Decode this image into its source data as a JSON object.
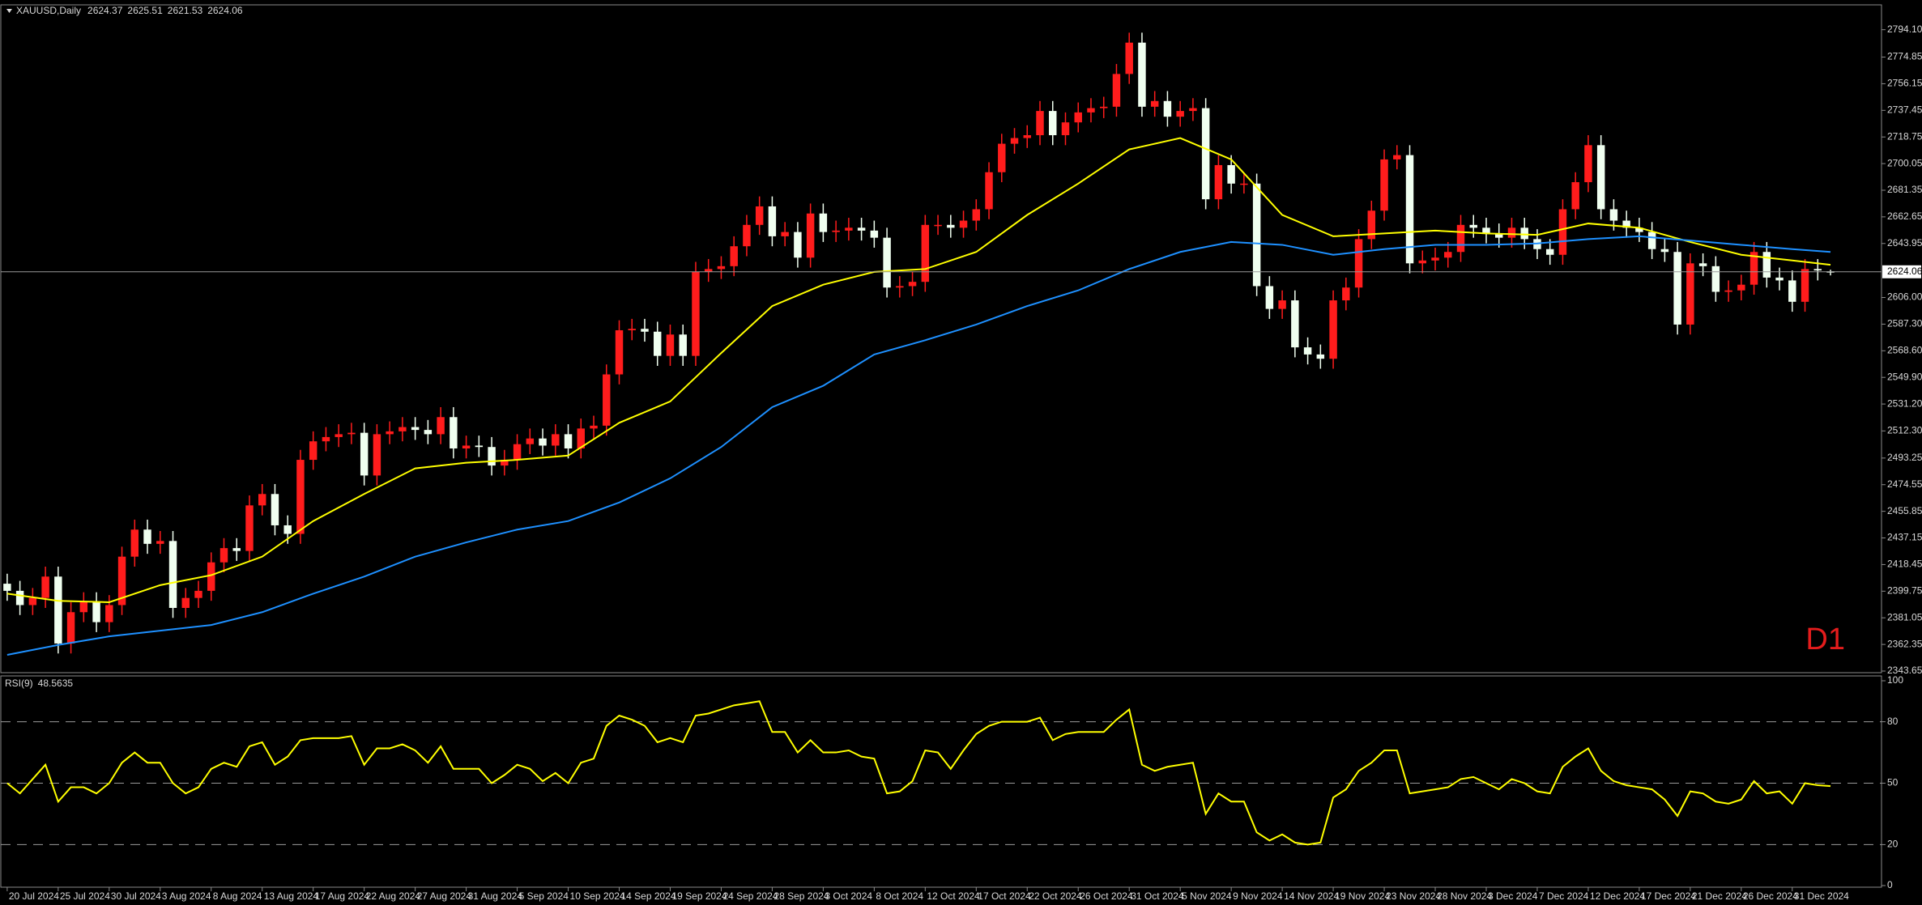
{
  "chart_data": [
    {
      "type": "candlestick",
      "title": "XAUUSD,Daily",
      "timeframe": "D1",
      "open": [
        2405,
        2400,
        2390,
        2395,
        2410,
        2363,
        2385,
        2392,
        2378,
        2390,
        2424,
        2443,
        2433,
        2435,
        2388,
        2395,
        2400,
        2420,
        2430,
        2428,
        2460,
        2468,
        2446,
        2440,
        2492,
        2505,
        2508,
        2510,
        2511,
        2481,
        2510,
        2512,
        2515,
        2513,
        2510,
        2522,
        2500,
        2502,
        2501,
        2488,
        2492,
        2503,
        2507,
        2502,
        2510,
        2500,
        2514,
        2516,
        2552,
        2583,
        2584,
        2582,
        2565,
        2580,
        2565,
        2624,
        2626,
        2628,
        2642,
        2657,
        2670,
        2649,
        2652,
        2634,
        2665,
        2652,
        2653,
        2655,
        2653,
        2648,
        2613,
        2614,
        2617,
        2657,
        2657,
        2655,
        2660,
        2668,
        2694,
        2714,
        2718,
        2720,
        2737,
        2720,
        2729,
        2736,
        2739,
        2740,
        2763,
        2785,
        2740,
        2744,
        2733,
        2737,
        2739,
        2675,
        2699,
        2686,
        2686,
        2614,
        2598,
        2604,
        2571,
        2566,
        2563,
        2604,
        2613,
        2647,
        2667,
        2703,
        2706,
        2630,
        2632,
        2634,
        2638,
        2657,
        2655,
        2651,
        2648,
        2655,
        2647,
        2640,
        2636,
        2668,
        2687,
        2713,
        2668,
        2660,
        2655,
        2652,
        2640,
        2638,
        2587,
        2630,
        2628,
        2610,
        2611,
        2615,
        2638,
        2620,
        2618,
        2603,
        2626,
        2624.37
      ],
      "high": [
        2412,
        2407,
        2402,
        2417,
        2417,
        2392,
        2399,
        2399,
        2397,
        2431,
        2450,
        2450,
        2442,
        2442,
        2402,
        2407,
        2427,
        2437,
        2437,
        2467,
        2475,
        2475,
        2453,
        2499,
        2512,
        2515,
        2517,
        2518,
        2518,
        2517,
        2519,
        2522,
        2522,
        2520,
        2529,
        2529,
        2509,
        2509,
        2508,
        2499,
        2510,
        2514,
        2514,
        2517,
        2517,
        2521,
        2523,
        2559,
        2590,
        2591,
        2591,
        2589,
        2587,
        2587,
        2631,
        2633,
        2635,
        2649,
        2664,
        2677,
        2677,
        2659,
        2659,
        2672,
        2672,
        2660,
        2662,
        2662,
        2660,
        2655,
        2621,
        2624,
        2664,
        2664,
        2664,
        2667,
        2675,
        2701,
        2721,
        2725,
        2727,
        2744,
        2744,
        2736,
        2743,
        2746,
        2747,
        2770,
        2792,
        2792,
        2751,
        2751,
        2744,
        2746,
        2746,
        2706,
        2706,
        2693,
        2693,
        2621,
        2611,
        2611,
        2578,
        2573,
        2611,
        2620,
        2654,
        2674,
        2710,
        2713,
        2713,
        2639,
        2641,
        2645,
        2664,
        2664,
        2662,
        2658,
        2662,
        2662,
        2654,
        2647,
        2675,
        2694,
        2720,
        2720,
        2675,
        2667,
        2662,
        2659,
        2647,
        2645,
        2637,
        2637,
        2635,
        2618,
        2622,
        2645,
        2645,
        2627,
        2625,
        2633,
        2633,
        2625.51
      ],
      "low": [
        2393,
        2383,
        2383,
        2388,
        2356,
        2356,
        2378,
        2371,
        2371,
        2383,
        2417,
        2426,
        2426,
        2381,
        2381,
        2388,
        2393,
        2413,
        2421,
        2421,
        2453,
        2439,
        2433,
        2433,
        2485,
        2498,
        2501,
        2503,
        2474,
        2474,
        2503,
        2505,
        2506,
        2503,
        2503,
        2493,
        2493,
        2494,
        2481,
        2481,
        2485,
        2496,
        2495,
        2495,
        2493,
        2493,
        2507,
        2509,
        2545,
        2576,
        2575,
        2558,
        2558,
        2558,
        2558,
        2617,
        2619,
        2621,
        2635,
        2650,
        2642,
        2642,
        2627,
        2627,
        2645,
        2645,
        2646,
        2646,
        2641,
        2606,
        2606,
        2607,
        2610,
        2650,
        2648,
        2648,
        2653,
        2661,
        2687,
        2707,
        2711,
        2713,
        2713,
        2713,
        2722,
        2729,
        2732,
        2733,
        2756,
        2733,
        2733,
        2726,
        2726,
        2730,
        2668,
        2668,
        2679,
        2679,
        2607,
        2591,
        2591,
        2564,
        2559,
        2556,
        2556,
        2597,
        2606,
        2640,
        2660,
        2696,
        2623,
        2623,
        2625,
        2627,
        2631,
        2648,
        2644,
        2641,
        2641,
        2640,
        2633,
        2629,
        2629,
        2661,
        2680,
        2661,
        2653,
        2648,
        2645,
        2633,
        2631,
        2580,
        2580,
        2621,
        2603,
        2603,
        2604,
        2608,
        2613,
        2611,
        2596,
        2596,
        2618,
        2621.53
      ],
      "close": [
        2400,
        2390,
        2395,
        2410,
        2363,
        2385,
        2392,
        2378,
        2390,
        2424,
        2443,
        2433,
        2435,
        2388,
        2395,
        2400,
        2420,
        2430,
        2428,
        2460,
        2468,
        2446,
        2440,
        2492,
        2505,
        2508,
        2510,
        2511,
        2481,
        2510,
        2512,
        2515,
        2513,
        2510,
        2522,
        2500,
        2502,
        2501,
        2488,
        2492,
        2503,
        2507,
        2502,
        2510,
        2500,
        2514,
        2516,
        2552,
        2583,
        2584,
        2582,
        2565,
        2580,
        2565,
        2624,
        2626,
        2628,
        2642,
        2657,
        2670,
        2649,
        2652,
        2634,
        2665,
        2652,
        2653,
        2655,
        2653,
        2648,
        2613,
        2614,
        2617,
        2657,
        2657,
        2655,
        2660,
        2668,
        2694,
        2714,
        2718,
        2720,
        2737,
        2720,
        2729,
        2736,
        2739,
        2740,
        2763,
        2785,
        2740,
        2744,
        2733,
        2737,
        2739,
        2675,
        2699,
        2686,
        2686,
        2614,
        2598,
        2604,
        2571,
        2566,
        2563,
        2604,
        2613,
        2647,
        2667,
        2703,
        2706,
        2630,
        2632,
        2634,
        2638,
        2657,
        2655,
        2651,
        2648,
        2655,
        2647,
        2640,
        2636,
        2668,
        2687,
        2713,
        2668,
        2660,
        2655,
        2652,
        2640,
        2638,
        2587,
        2630,
        2628,
        2610,
        2611,
        2615,
        2638,
        2620,
        2618,
        2603,
        2626,
        2625,
        2624.06
      ],
      "up_color": "#ff1c1c",
      "down_color": "#f0fff0",
      "overlays": [
        {
          "type": "line",
          "color": "#ffff00",
          "x": [
            0,
            4,
            8,
            12,
            16,
            20,
            24,
            28,
            32,
            36,
            40,
            44,
            48,
            52,
            56,
            60,
            64,
            68,
            72,
            76,
            80,
            84,
            88,
            92,
            96,
            100,
            104,
            108,
            112,
            116,
            120,
            124,
            128,
            132,
            136,
            140,
            143
          ],
          "values": [
            2398,
            2393,
            2392,
            2404,
            2411,
            2424,
            2449,
            2468,
            2486,
            2490,
            2492,
            2495,
            2518,
            2533,
            2567,
            2600,
            2615,
            2624,
            2626,
            2638,
            2664,
            2686,
            2710,
            2718,
            2703,
            2664,
            2649,
            2651,
            2653,
            2651,
            2650,
            2658,
            2655,
            2645,
            2636,
            2632,
            2629
          ]
        },
        {
          "type": "line",
          "color": "#1e90ff",
          "x": [
            0,
            4,
            8,
            12,
            16,
            20,
            24,
            28,
            32,
            36,
            40,
            44,
            48,
            52,
            56,
            60,
            64,
            68,
            72,
            76,
            80,
            84,
            88,
            92,
            96,
            100,
            104,
            108,
            112,
            116,
            120,
            124,
            128,
            132,
            136,
            140,
            143
          ],
          "values": [
            2355,
            2362,
            2368,
            2372,
            2376,
            2385,
            2398,
            2410,
            2424,
            2434,
            2443,
            2449,
            2462,
            2479,
            2501,
            2529,
            2544,
            2566,
            2576,
            2587,
            2600,
            2611,
            2626,
            2638,
            2645,
            2643,
            2636,
            2640,
            2643,
            2643,
            2644,
            2647,
            2649,
            2646,
            2643,
            2640,
            2638
          ]
        }
      ],
      "last_price_line": true,
      "xlim": [
        -0.5,
        147
      ],
      "ylim": [
        2343.65,
        2810.4
      ],
      "yticks": [
        2343.65,
        2362.35,
        2381.05,
        2399.75,
        2418.45,
        2437.15,
        2455.85,
        2474.55,
        2493.25,
        {
          "value": 2512.3,
          "label": "2512.30"
        },
        {
          "value": 2531.2,
          "label": "2531.20"
        },
        {
          "value": 2549.9,
          "label": "2549.90"
        },
        {
          "value": 2568.6,
          "label": "2568.60"
        },
        {
          "value": 2587.3,
          "label": "2587.30"
        },
        {
          "value": 2606,
          "label": "2606.00"
        },
        2643.95,
        2662.65,
        2681.35,
        2700.05,
        2718.75,
        2737.45,
        2756.15,
        2774.85,
        {
          "value": 2794.1,
          "label": "2794.10"
        }
      ],
      "grid": false
    },
    {
      "type": "line",
      "title": "RSI(9)",
      "color": "#ffff00",
      "values": [
        50,
        45,
        52,
        59,
        41,
        48,
        48,
        45,
        50,
        60,
        65,
        60,
        60,
        50,
        45,
        48,
        57,
        60,
        58,
        68,
        70,
        59,
        63,
        71,
        72,
        72,
        72,
        73,
        59,
        67,
        67,
        69,
        66,
        60,
        68,
        57,
        57,
        57,
        50,
        54,
        59,
        57,
        51,
        55,
        50,
        60,
        62,
        78,
        83,
        81,
        78,
        70,
        72,
        70,
        83,
        84,
        86,
        88,
        89,
        90,
        75,
        75,
        65,
        71,
        65,
        65,
        66,
        63,
        62,
        45,
        46,
        51,
        66,
        65,
        57,
        66,
        74,
        78,
        80,
        80,
        80,
        82,
        71,
        74,
        75,
        75,
        75,
        81,
        86,
        59,
        56,
        58,
        59,
        60,
        35,
        45,
        41,
        41,
        26,
        22,
        25,
        21,
        20,
        21,
        43,
        47,
        56,
        60,
        66,
        66,
        45,
        46,
        47,
        48,
        52,
        53,
        50,
        47,
        52,
        50,
        46,
        45,
        58,
        63,
        67,
        56,
        51,
        49,
        48,
        47,
        42,
        34,
        46,
        45,
        41,
        40,
        42,
        51,
        45,
        46,
        40,
        50,
        49,
        48.5635
      ],
      "xlim": [
        -0.5,
        147
      ],
      "ylim": [
        0,
        100
      ],
      "yticks": [
        0,
        20,
        50,
        80,
        100
      ],
      "levels": [
        20,
        50,
        80
      ],
      "xticks": [
        {
          "value": 0,
          "label": "20 Jul 2024"
        },
        {
          "value": 4,
          "label": "25 Jul 2024"
        },
        {
          "value": 8,
          "label": "30 Jul 2024"
        },
        {
          "value": 12,
          "label": "3 Aug 2024"
        },
        {
          "value": 16,
          "label": "8 Aug 2024"
        },
        {
          "value": 20,
          "label": "13 Aug 2024"
        },
        {
          "value": 24,
          "label": "17 Aug 2024"
        },
        {
          "value": 28,
          "label": "22 Aug 2024"
        },
        {
          "value": 32,
          "label": "27 Aug 2024"
        },
        {
          "value": 36,
          "label": "31 Aug 2024"
        },
        {
          "value": 40,
          "label": "5 Sep 2024"
        },
        {
          "value": 44,
          "label": "10 Sep 2024"
        },
        {
          "value": 48,
          "label": "14 Sep 2024"
        },
        {
          "value": 52,
          "label": "19 Sep 2024"
        },
        {
          "value": 56,
          "label": "24 Sep 2024"
        },
        {
          "value": 60,
          "label": "28 Sep 2024"
        },
        {
          "value": 64,
          "label": "3 Oct 2024"
        },
        {
          "value": 68,
          "label": "8 Oct 2024"
        },
        {
          "value": 72,
          "label": "12 Oct 2024"
        },
        {
          "value": 76,
          "label": "17 Oct 2024"
        },
        {
          "value": 80,
          "label": "22 Oct 2024"
        },
        {
          "value": 84,
          "label": "26 Oct 2024"
        },
        {
          "value": 88,
          "label": "31 Oct 2024"
        },
        {
          "value": 92,
          "label": "5 Nov 2024"
        },
        {
          "value": 96,
          "label": "9 Nov 2024"
        },
        {
          "value": 100,
          "label": "14 Nov 2024"
        },
        {
          "value": 104,
          "label": "19 Nov 2024"
        },
        {
          "value": 108,
          "label": "23 Nov 2024"
        },
        {
          "value": 112,
          "label": "28 Nov 2024"
        },
        {
          "value": 116,
          "label": "3 Dec 2024"
        },
        {
          "value": 120,
          "label": "7 Dec 2024"
        },
        {
          "value": 124,
          "label": "12 Dec 2024"
        },
        {
          "value": 128,
          "label": "17 Dec 2024"
        },
        {
          "value": 132,
          "label": "21 Dec 2024"
        },
        {
          "value": 136,
          "label": "26 Dec 2024"
        },
        {
          "value": 140,
          "label": "31 Dec 2024"
        }
      ]
    }
  ]
}
